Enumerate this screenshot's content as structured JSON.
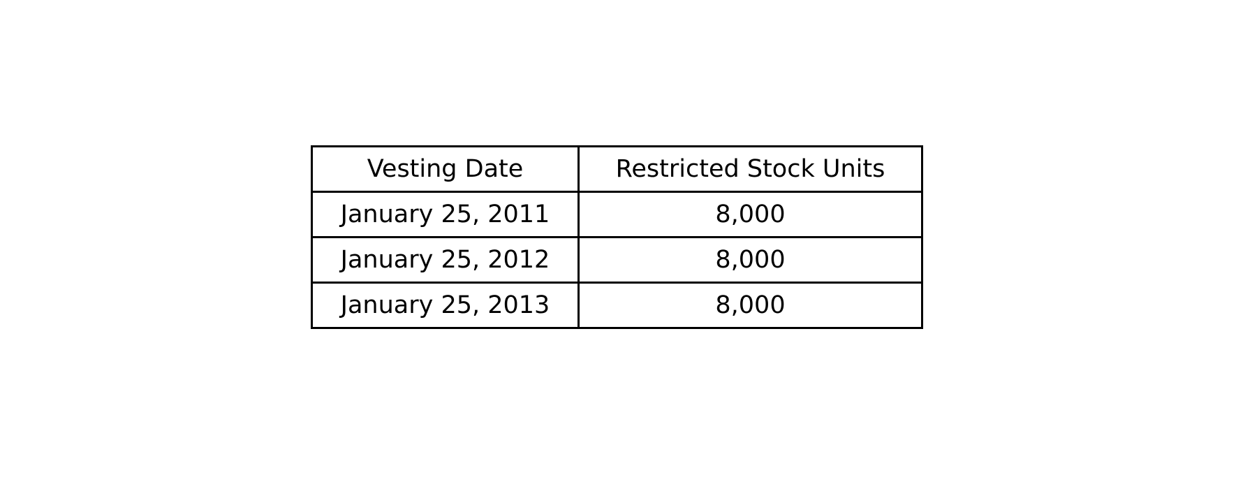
{
  "table": {
    "headers": {
      "vesting_date": "Vesting Date",
      "restricted_stock_units": "Restricted Stock Units"
    },
    "rows": [
      {
        "vesting_date": "January 25, 2011",
        "restricted_stock_units": "8,000"
      },
      {
        "vesting_date": "January 25, 2012",
        "restricted_stock_units": "8,000"
      },
      {
        "vesting_date": "January 25, 2013",
        "restricted_stock_units": "8,000"
      }
    ]
  }
}
